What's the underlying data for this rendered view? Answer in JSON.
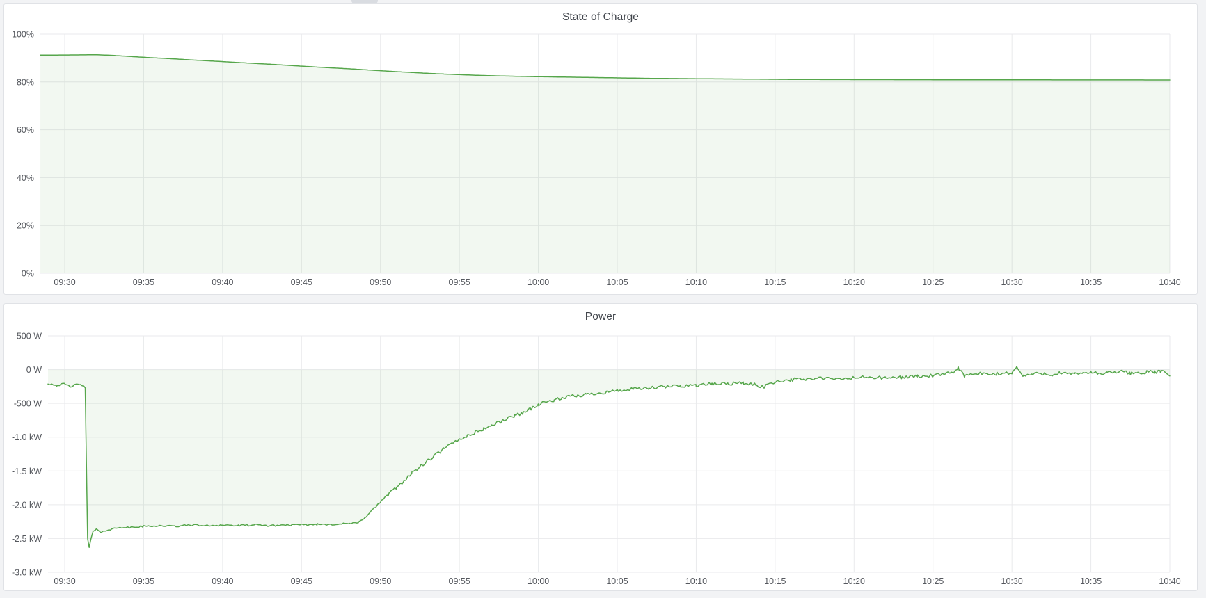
{
  "page": {
    "background": "#F2F3F5",
    "panel_background": "#FFFFFF",
    "panel_border": "#E0E2E6",
    "grid_color": "#E9EAEC",
    "tick_color": "#55585E",
    "title_color": "#40444B"
  },
  "chart_data": [
    {
      "type": "area",
      "title": "State of Charge",
      "legend": "none",
      "grid": true,
      "x_axis": {
        "start_label": "09:30",
        "end_label": "10:40",
        "tick_every_min": 5
      },
      "x_tick_labels": [
        "09:30",
        "09:35",
        "09:40",
        "09:45",
        "09:50",
        "09:55",
        "10:00",
        "10:05",
        "10:10",
        "10:15",
        "10:20",
        "10:25",
        "10:30",
        "10:35",
        "10:40"
      ],
      "ylim": [
        0,
        100
      ],
      "y_ticks": [
        {
          "v": 100,
          "label": "100%"
        },
        {
          "v": 80,
          "label": "80%"
        },
        {
          "v": 60,
          "label": "60%"
        },
        {
          "v": 40,
          "label": "40%"
        },
        {
          "v": 20,
          "label": "20%"
        },
        {
          "v": 0,
          "label": "0%"
        }
      ],
      "series": [
        {
          "name": "State of Charge",
          "unit": "%",
          "color": "#56A64B",
          "fill_opacity": 0.08,
          "fill_to": 0,
          "noise": [
            {
              "until": 71,
              "amp": 0
            }
          ],
          "points": [
            [
              -1.54,
              91.2
            ],
            [
              0,
              91.25
            ],
            [
              1,
              91.3
            ],
            [
              2,
              91.35
            ],
            [
              3,
              91.1
            ],
            [
              4,
              90.7
            ],
            [
              5,
              90.3
            ],
            [
              6,
              89.95
            ],
            [
              7,
              89.6
            ],
            [
              8,
              89.2
            ],
            [
              9,
              88.85
            ],
            [
              10,
              88.5
            ],
            [
              11,
              88.1
            ],
            [
              12,
              87.75
            ],
            [
              13,
              87.4
            ],
            [
              14,
              87.0
            ],
            [
              15,
              86.6
            ],
            [
              16,
              86.2
            ],
            [
              17,
              85.85
            ],
            [
              18,
              85.5
            ],
            [
              19,
              85.1
            ],
            [
              20,
              84.7
            ],
            [
              21,
              84.3
            ],
            [
              22,
              83.95
            ],
            [
              23,
              83.6
            ],
            [
              24,
              83.3
            ],
            [
              25,
              83.05
            ],
            [
              26,
              82.8
            ],
            [
              27,
              82.6
            ],
            [
              28,
              82.45
            ],
            [
              29,
              82.3
            ],
            [
              30,
              82.2
            ],
            [
              31,
              82.1
            ],
            [
              32,
              82.0
            ],
            [
              33,
              81.9
            ],
            [
              34,
              81.8
            ],
            [
              35,
              81.7
            ],
            [
              36,
              81.6
            ],
            [
              37,
              81.5
            ],
            [
              38,
              81.45
            ],
            [
              39,
              81.4
            ],
            [
              40,
              81.35
            ],
            [
              41,
              81.3
            ],
            [
              42,
              81.25
            ],
            [
              43,
              81.2
            ],
            [
              44,
              81.15
            ],
            [
              45,
              81.1
            ],
            [
              46,
              81.05
            ],
            [
              47,
              81.02
            ],
            [
              48,
              81.0
            ],
            [
              50,
              80.97
            ],
            [
              52,
              80.95
            ],
            [
              54,
              80.93
            ],
            [
              56,
              80.9
            ],
            [
              58,
              80.88
            ],
            [
              60,
              80.87
            ],
            [
              62,
              80.86
            ],
            [
              64,
              80.85
            ],
            [
              66,
              80.84
            ],
            [
              68,
              80.83
            ],
            [
              70,
              80.82
            ]
          ]
        }
      ]
    },
    {
      "type": "area",
      "title": "Power",
      "legend": "none",
      "grid": true,
      "x_axis": {
        "start_label": "09:30",
        "end_label": "10:40",
        "tick_every_min": 5
      },
      "x_tick_labels": [
        "09:30",
        "09:35",
        "09:40",
        "09:45",
        "09:50",
        "09:55",
        "10:00",
        "10:05",
        "10:10",
        "10:15",
        "10:20",
        "10:25",
        "10:30",
        "10:35",
        "10:40"
      ],
      "ylim": [
        -3000,
        500
      ],
      "y_ticks": [
        {
          "v": 500,
          "label": "500 W"
        },
        {
          "v": 0,
          "label": "0 W"
        },
        {
          "v": -500,
          "label": "-500 W"
        },
        {
          "v": -1000,
          "label": "-1.0 kW"
        },
        {
          "v": -1500,
          "label": "-1.5 kW"
        },
        {
          "v": -2000,
          "label": "-2.0 kW"
        },
        {
          "v": -2500,
          "label": "-2.5 kW"
        },
        {
          "v": -3000,
          "label": "-3.0 kW"
        }
      ],
      "series": [
        {
          "name": "Power",
          "unit": "W",
          "color": "#56A64B",
          "fill_opacity": 0.08,
          "fill_to": 0,
          "noise": [
            {
              "until": 1.35,
              "amp": 16
            },
            {
              "until": 18.6,
              "amp": 13
            },
            {
              "until": 34,
              "amp": 26
            },
            {
              "until": 71,
              "amp": 26
            }
          ],
          "points": [
            [
              -1.06,
              -205
            ],
            [
              -0.5,
              -230
            ],
            [
              0,
              -215
            ],
            [
              0.3,
              -250
            ],
            [
              0.6,
              -235
            ],
            [
              0.9,
              -215
            ],
            [
              1.1,
              -230
            ],
            [
              1.3,
              -280
            ],
            [
              1.45,
              -2500
            ],
            [
              1.55,
              -2620
            ],
            [
              1.65,
              -2520
            ],
            [
              1.8,
              -2400
            ],
            [
              2.0,
              -2360
            ],
            [
              2.3,
              -2420
            ],
            [
              2.6,
              -2380
            ],
            [
              3.0,
              -2360
            ],
            [
              3.5,
              -2330
            ],
            [
              4,
              -2340
            ],
            [
              5,
              -2320
            ],
            [
              6,
              -2310
            ],
            [
              7,
              -2320
            ],
            [
              8,
              -2300
            ],
            [
              9,
              -2310
            ],
            [
              10,
              -2300
            ],
            [
              11,
              -2310
            ],
            [
              12,
              -2300
            ],
            [
              13,
              -2310
            ],
            [
              14,
              -2300
            ],
            [
              15,
              -2300
            ],
            [
              16,
              -2290
            ],
            [
              17,
              -2290
            ],
            [
              18,
              -2280
            ],
            [
              18.6,
              -2270
            ],
            [
              19,
              -2180
            ],
            [
              19.5,
              -2080
            ],
            [
              20,
              -1960
            ],
            [
              20.5,
              -1850
            ],
            [
              21,
              -1750
            ],
            [
              21.5,
              -1640
            ],
            [
              22,
              -1530
            ],
            [
              22.5,
              -1440
            ],
            [
              23,
              -1350
            ],
            [
              23.5,
              -1260
            ],
            [
              24,
              -1180
            ],
            [
              24.5,
              -1100
            ],
            [
              25,
              -1030
            ],
            [
              25.5,
              -980
            ],
            [
              26,
              -930
            ],
            [
              26.5,
              -880
            ],
            [
              27,
              -830
            ],
            [
              27.5,
              -780
            ],
            [
              28,
              -730
            ],
            [
              28.5,
              -680
            ],
            [
              29,
              -640
            ],
            [
              29.5,
              -580
            ],
            [
              30,
              -520
            ],
            [
              30.5,
              -480
            ],
            [
              31,
              -450
            ],
            [
              31.5,
              -430
            ],
            [
              32,
              -400
            ],
            [
              32.5,
              -385
            ],
            [
              33,
              -370
            ],
            [
              33.5,
              -355
            ],
            [
              34,
              -340
            ],
            [
              34.5,
              -325
            ],
            [
              35,
              -310
            ],
            [
              36,
              -290
            ],
            [
              37,
              -275
            ],
            [
              38,
              -255
            ],
            [
              39,
              -240
            ],
            [
              40,
              -230
            ],
            [
              41,
              -215
            ],
            [
              42,
              -205
            ],
            [
              43,
              -200
            ],
            [
              43.8,
              -230
            ],
            [
              44.3,
              -255
            ],
            [
              44.8,
              -190
            ],
            [
              45.5,
              -160
            ],
            [
              46,
              -150
            ],
            [
              47,
              -140
            ],
            [
              48,
              -130
            ],
            [
              49,
              -145
            ],
            [
              50,
              -120
            ],
            [
              51,
              -112
            ],
            [
              52,
              -128
            ],
            [
              53,
              -110
            ],
            [
              54,
              -100
            ],
            [
              55,
              -92
            ],
            [
              55.8,
              -70
            ],
            [
              56.3,
              -30
            ],
            [
              56.6,
              25
            ],
            [
              57,
              -95
            ],
            [
              57.5,
              -70
            ],
            [
              58,
              -60
            ],
            [
              58.5,
              -75
            ],
            [
              59,
              -65
            ],
            [
              59.5,
              -55
            ],
            [
              60,
              -45
            ],
            [
              60.3,
              35
            ],
            [
              60.7,
              -95
            ],
            [
              61.2,
              -70
            ],
            [
              62,
              -55
            ],
            [
              62.5,
              -75
            ],
            [
              63,
              -50
            ],
            [
              63.5,
              -65
            ],
            [
              64,
              -70
            ],
            [
              64.5,
              -45
            ],
            [
              65,
              -40
            ],
            [
              65.5,
              -60
            ],
            [
              66,
              -55
            ],
            [
              66.5,
              -35
            ],
            [
              67,
              -30
            ],
            [
              67.5,
              -55
            ],
            [
              68,
              -45
            ],
            [
              68.5,
              -40
            ],
            [
              69,
              -35
            ],
            [
              69.4,
              -25
            ],
            [
              69.7,
              -45
            ],
            [
              70,
              -85
            ]
          ]
        }
      ]
    }
  ]
}
